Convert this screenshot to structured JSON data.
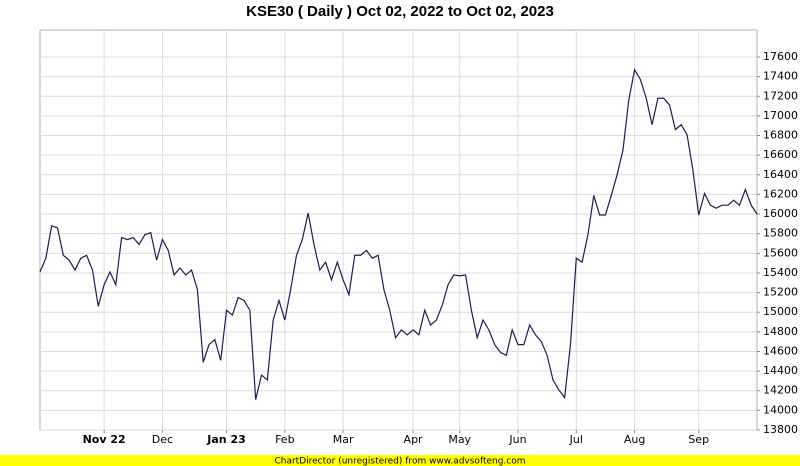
{
  "chart_data": {
    "type": "line",
    "title": "KSE30 ( Daily ) Oct 02, 2022 to Oct 02, 2023",
    "categories": [
      null,
      null,
      null,
      null,
      null,
      null,
      null,
      null,
      null,
      null,
      null,
      "Nov 22",
      null,
      null,
      null,
      null,
      null,
      null,
      null,
      null,
      null,
      "Dec",
      null,
      null,
      null,
      null,
      null,
      null,
      null,
      null,
      null,
      null,
      "Jan 23",
      null,
      null,
      null,
      null,
      null,
      null,
      null,
      null,
      null,
      "Feb",
      null,
      null,
      null,
      null,
      null,
      null,
      null,
      null,
      null,
      "Mar",
      null,
      null,
      null,
      null,
      null,
      null,
      null,
      null,
      null,
      null,
      null,
      "Apr",
      null,
      null,
      null,
      null,
      null,
      null,
      null,
      "May",
      null,
      null,
      null,
      null,
      null,
      null,
      null,
      null,
      null,
      "Jun",
      null,
      null,
      null,
      null,
      null,
      null,
      null,
      null,
      null,
      "Jul",
      null,
      null,
      null,
      null,
      null,
      null,
      null,
      null,
      null,
      "Aug",
      null,
      null,
      null,
      null,
      null,
      null,
      null,
      null,
      null,
      null,
      "Sep",
      null,
      null,
      null,
      null,
      null,
      null,
      null,
      null,
      null,
      null
    ],
    "values": [
      15410,
      15550,
      15880,
      15860,
      15580,
      15530,
      15430,
      15550,
      15580,
      15430,
      15060,
      15280,
      15410,
      15280,
      15760,
      15740,
      15760,
      15690,
      15790,
      15810,
      15530,
      15740,
      15630,
      15380,
      15450,
      15380,
      15430,
      15230,
      14490,
      14670,
      14720,
      14510,
      15020,
      14970,
      15150,
      15120,
      15020,
      14110,
      14360,
      14310,
      14920,
      15120,
      14920,
      15230,
      15580,
      15740,
      16010,
      15690,
      15430,
      15510,
      15330,
      15510,
      15330,
      15180,
      15580,
      15580,
      15630,
      15550,
      15580,
      15230,
      15020,
      14740,
      14820,
      14770,
      14820,
      14770,
      15020,
      14870,
      14920,
      15070,
      15280,
      15380,
      15370,
      15380,
      15020,
      14740,
      14920,
      14820,
      14670,
      14590,
      14560,
      14820,
      14670,
      14670,
      14870,
      14770,
      14700,
      14560,
      14310,
      14210,
      14130,
      14670,
      15550,
      15510,
      15790,
      16190,
      15990,
      15990,
      16190,
      16400,
      16650,
      17160,
      17470,
      17370,
      17180,
      16910,
      17180,
      17180,
      17110,
      16860,
      16910,
      16810,
      16450,
      15990,
      16210,
      16090,
      16060,
      16090,
      16090,
      16140,
      16090,
      16250,
      16090,
      16000
    ],
    "color": "#1c1c50",
    "ylim": [
      13800,
      17875
    ],
    "yticks": [
      13800,
      14000,
      14200,
      14400,
      14600,
      14800,
      15000,
      15200,
      15400,
      15600,
      15800,
      16000,
      16200,
      16400,
      16600,
      16800,
      17000,
      17200,
      17400,
      17600
    ],
    "grid": true
  },
  "footer": "ChartDirector (unregistered) from www.advsofteng.com"
}
